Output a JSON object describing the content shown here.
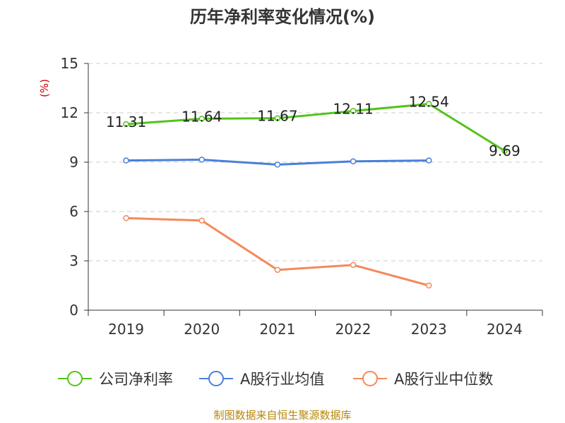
{
  "chart_data": {
    "type": "line",
    "title": "历年净利率变化情况(%)",
    "ylabel": "(%)",
    "xlabel": "",
    "categories": [
      "2019",
      "2020",
      "2021",
      "2022",
      "2023",
      "2024"
    ],
    "ylim": [
      0,
      15
    ],
    "yticks": [
      0,
      3,
      6,
      9,
      12,
      15
    ],
    "grid": true,
    "legend_position": "bottom",
    "series": [
      {
        "name": "公司净利率",
        "color": "#52c41a",
        "values": [
          11.31,
          11.64,
          11.67,
          12.11,
          12.54,
          9.69
        ],
        "labels": [
          "11.31",
          "11.64",
          "11.67",
          "12.11",
          "12.54",
          "9.69"
        ]
      },
      {
        "name": "A股行业均值",
        "color": "#4a7fd8",
        "values": [
          9.1,
          9.15,
          8.85,
          9.05,
          9.1,
          null
        ]
      },
      {
        "name": "A股行业中位数",
        "color": "#f4895a",
        "values": [
          5.6,
          5.45,
          2.45,
          2.75,
          1.5,
          null
        ]
      }
    ]
  },
  "footer": {
    "source": "制图数据来自恒生聚源数据库"
  }
}
